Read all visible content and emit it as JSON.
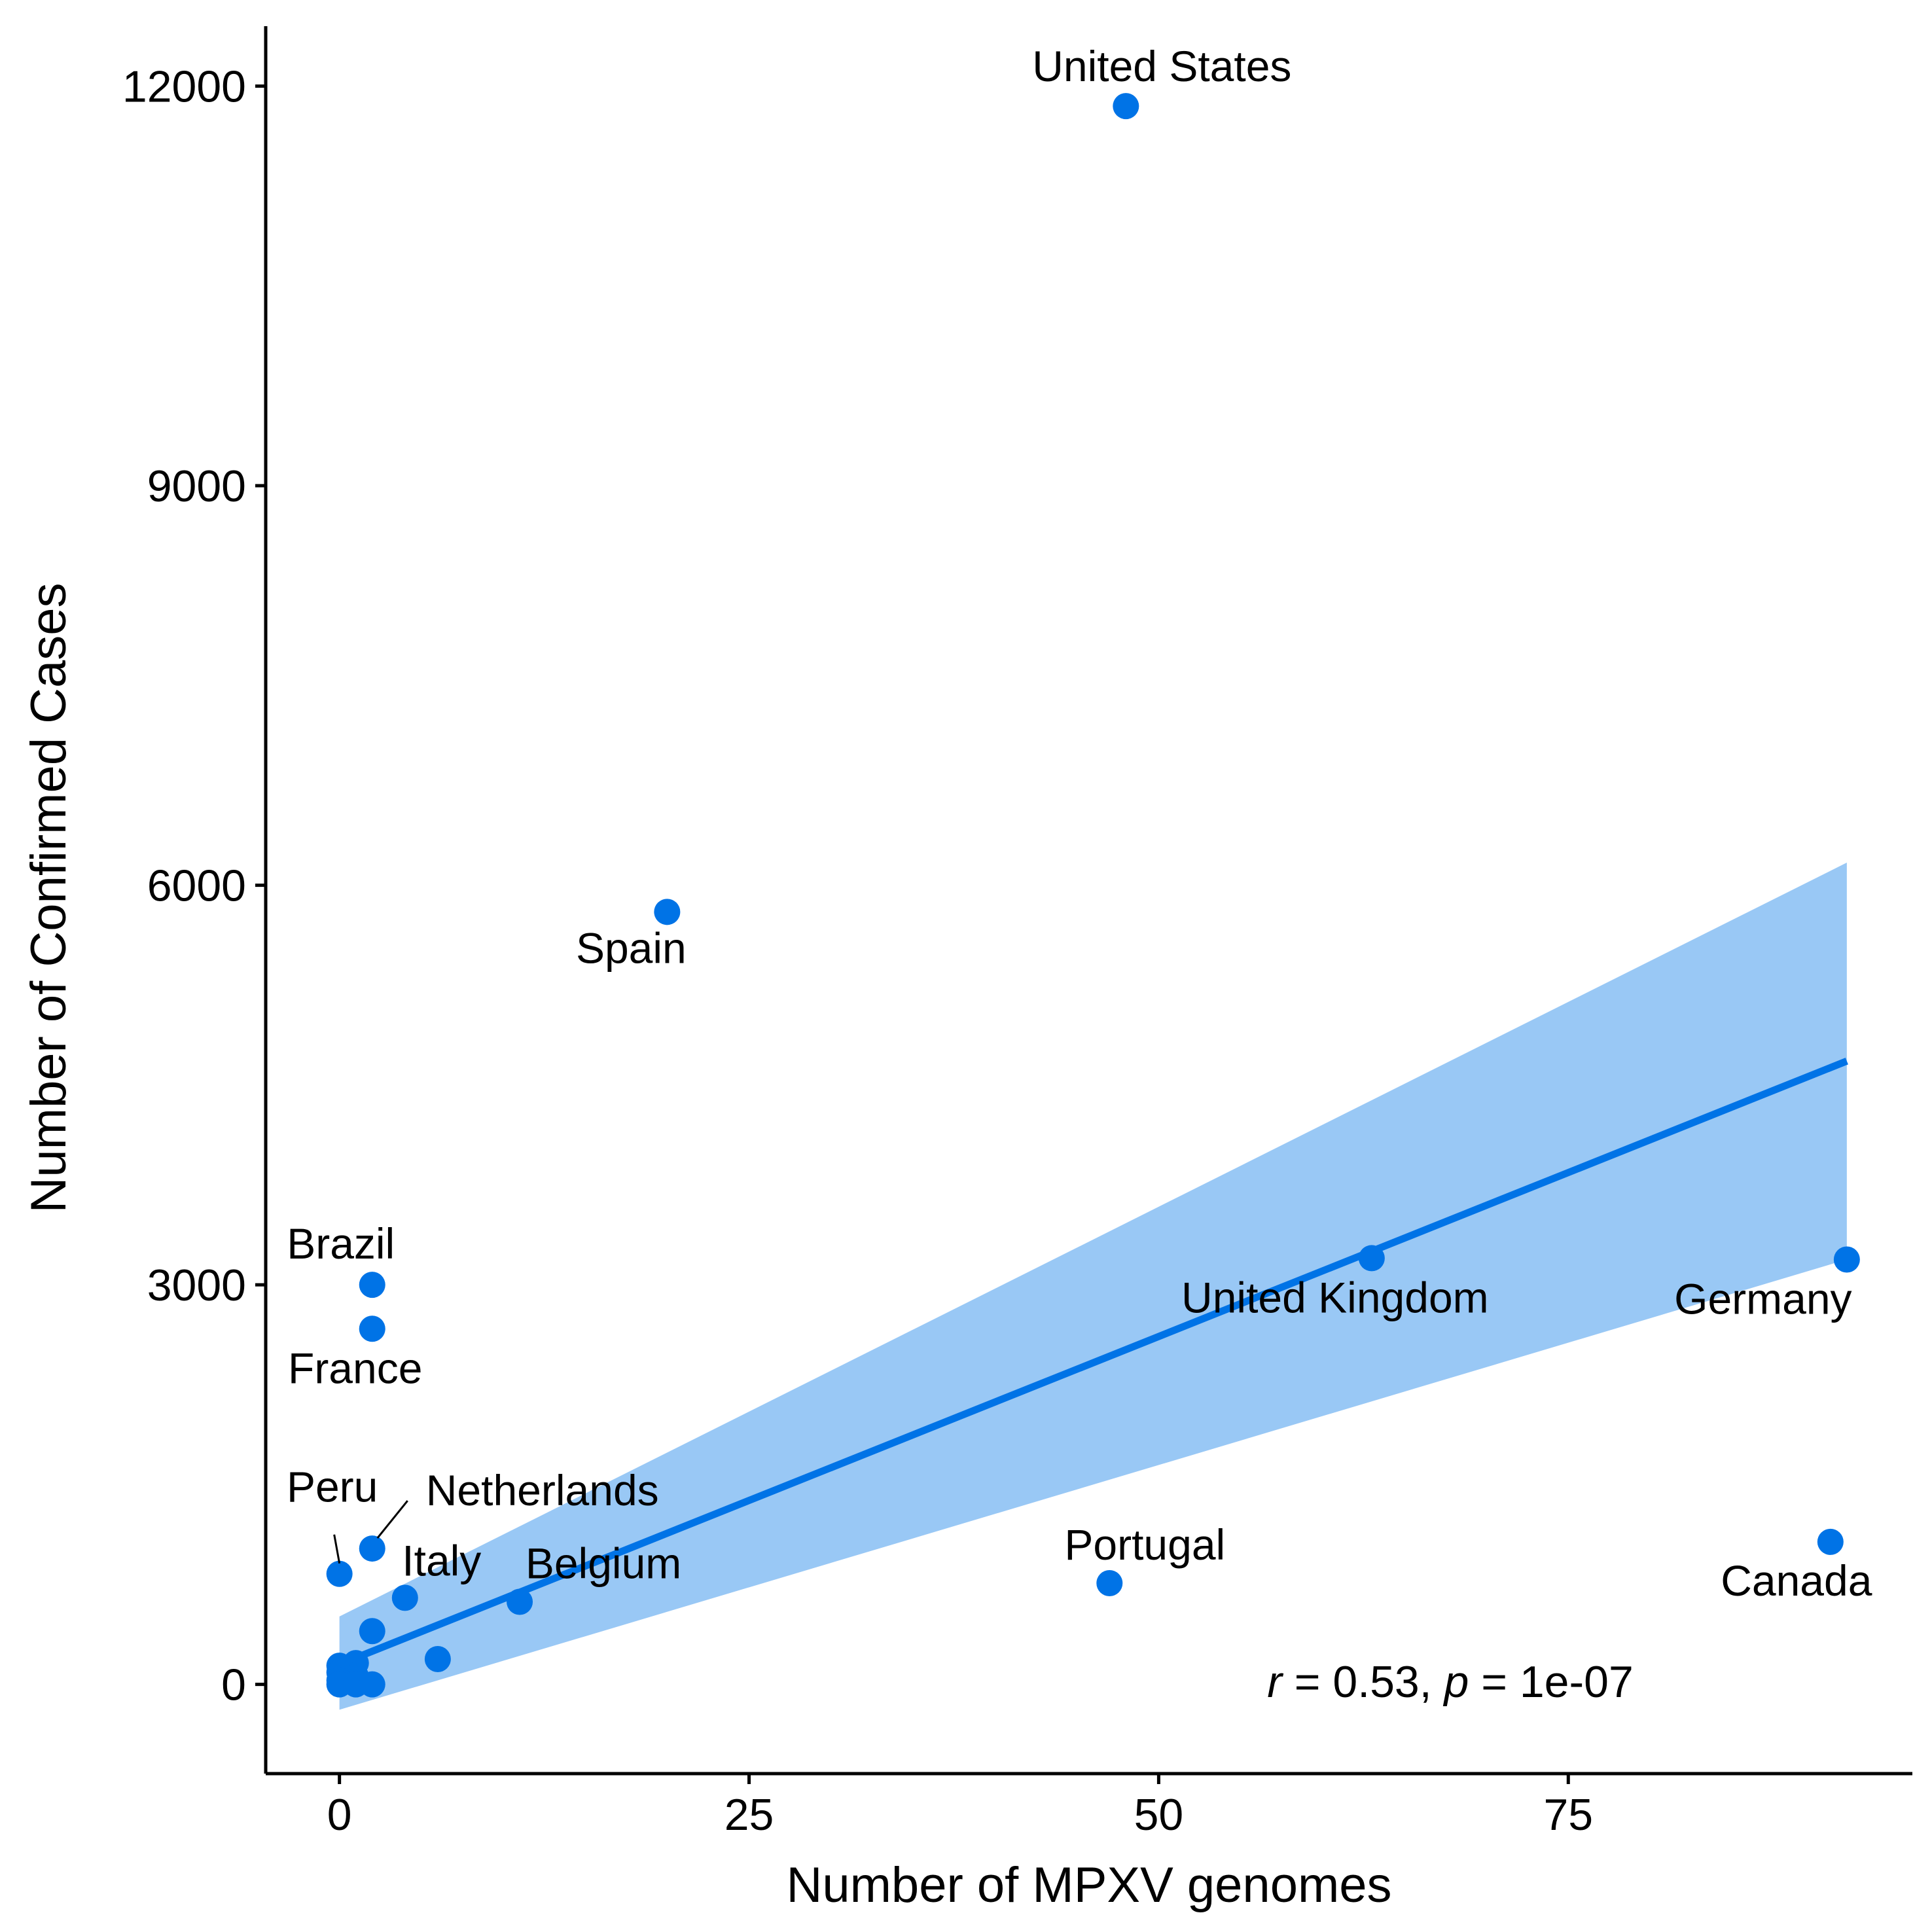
{
  "chart_data": {
    "type": "scatter",
    "xlabel": "Number of MPXV genomes",
    "ylabel": "Number of Confirmed Cases",
    "xlim": [
      -4.5,
      96
    ],
    "ylim": [
      -670,
      12450
    ],
    "x_ticks": [
      0,
      25,
      50,
      75
    ],
    "y_ticks": [
      0,
      3000,
      6000,
      9000,
      12000
    ],
    "x_tick_labels": [
      "0",
      "25",
      "50",
      "75"
    ],
    "y_tick_labels": [
      "0",
      "3000",
      "6000",
      "9000",
      "12000"
    ],
    "grid": false,
    "point_color": "#0073E6",
    "band_color": "#99C8F5",
    "points": [
      {
        "x": 48,
        "y": 11850,
        "label": "United States"
      },
      {
        "x": 20,
        "y": 5800,
        "label": "Spain"
      },
      {
        "x": 2,
        "y": 3000,
        "label": "Brazil"
      },
      {
        "x": 2,
        "y": 2670,
        "label": "France"
      },
      {
        "x": 63,
        "y": 3200,
        "label": "United Kingdom"
      },
      {
        "x": 92,
        "y": 3190,
        "label": "Germany"
      },
      {
        "x": 91,
        "y": 1070,
        "label": "Canada"
      },
      {
        "x": 47,
        "y": 760,
        "label": "Portugal"
      },
      {
        "x": 0,
        "y": 830,
        "label": "Peru"
      },
      {
        "x": 2,
        "y": 1020,
        "label": "Netherlands"
      },
      {
        "x": 4,
        "y": 650,
        "label": "Italy"
      },
      {
        "x": 11,
        "y": 620,
        "label": "Belgium"
      },
      {
        "x": 2,
        "y": 400
      },
      {
        "x": 6,
        "y": 190
      },
      {
        "x": 1,
        "y": 160
      },
      {
        "x": 0,
        "y": 140
      },
      {
        "x": 0,
        "y": 90
      },
      {
        "x": 1,
        "y": 60
      },
      {
        "x": 0,
        "y": 30
      },
      {
        "x": 0,
        "y": 0
      },
      {
        "x": 1,
        "y": 0
      },
      {
        "x": 2,
        "y": 0
      }
    ],
    "regression": {
      "x": [
        0,
        92
      ],
      "y": [
        150,
        4680
      ],
      "band": {
        "x": [
          0,
          92
        ],
        "lower": [
          -190,
          3190
        ],
        "upper": [
          510,
          6170
        ]
      }
    },
    "annotation": {
      "r_symbol": "r",
      "r_text": " = 0.53, ",
      "p_symbol": "p",
      "p_text": " = 1e-07"
    }
  }
}
